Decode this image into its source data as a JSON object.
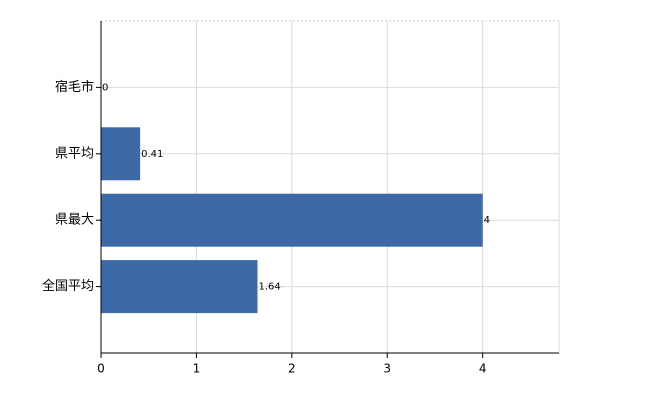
{
  "chart_data": {
    "type": "bar",
    "orientation": "horizontal",
    "categories": [
      "宿毛市",
      "県平均",
      "県最大",
      "全国平均"
    ],
    "values": [
      0,
      0.41,
      4,
      1.64
    ],
    "color": "#3d6aa6",
    "xlim": [
      0,
      4.8
    ],
    "xticks": [
      0,
      1,
      2,
      3,
      4
    ],
    "grid": true
  }
}
